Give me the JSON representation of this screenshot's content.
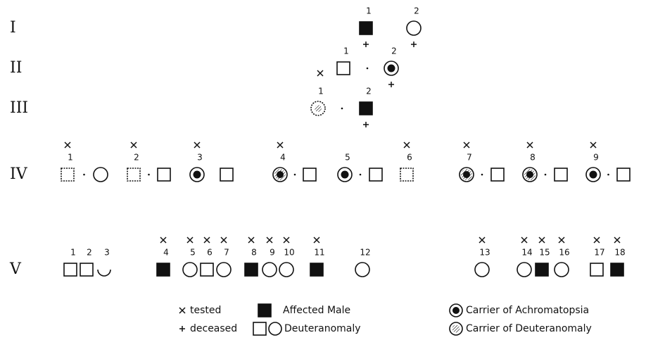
{
  "generations": [
    {
      "label": "I",
      "members": [
        {
          "n": "1",
          "kind": "affected-male",
          "deceased": true
        },
        {
          "n": "2",
          "kind": "female",
          "deceased": true
        }
      ]
    },
    {
      "label": "II",
      "members": [
        {
          "n": "1",
          "kind": "male"
        },
        {
          "n": "2",
          "kind": "carrier-achromatopsia",
          "deceased": true
        }
      ]
    },
    {
      "label": "III",
      "members": [
        {
          "n": "1",
          "kind": "carrier-deuteranomaly",
          "tested": true
        },
        {
          "n": "2",
          "kind": "affected-male",
          "deceased": true
        }
      ]
    },
    {
      "label": "IV",
      "members": [
        {
          "n": "1",
          "kind": "deuteranomaly-male",
          "tested": true
        },
        {
          "kind": "female"
        },
        {
          "n": "2",
          "kind": "deuteranomaly-male",
          "tested": true
        },
        {
          "kind": "male"
        },
        {
          "n": "3",
          "kind": "carrier-achromatopsia",
          "tested": true
        },
        {
          "kind": "male"
        },
        {
          "n": "4",
          "kind": "carrier-both",
          "tested": true
        },
        {
          "kind": "male"
        },
        {
          "n": "5",
          "kind": "carrier-achromatopsia"
        },
        {
          "kind": "male"
        },
        {
          "n": "6",
          "kind": "deuteranomaly-male",
          "tested": true
        },
        {
          "n": "7",
          "kind": "carrier-both",
          "tested": true
        },
        {
          "kind": "male"
        },
        {
          "n": "8",
          "kind": "carrier-both",
          "tested": true
        },
        {
          "kind": "male"
        },
        {
          "n": "9",
          "kind": "carrier-achromatopsia",
          "tested": true
        },
        {
          "kind": "male"
        }
      ]
    },
    {
      "label": "V",
      "members": [
        {
          "n": "1",
          "kind": "male"
        },
        {
          "n": "2",
          "kind": "male"
        },
        {
          "n": "3",
          "kind": "half-female"
        },
        {
          "n": "4",
          "kind": "affected-male",
          "tested": true
        },
        {
          "n": "5",
          "kind": "female",
          "tested": true
        },
        {
          "n": "6",
          "kind": "male",
          "tested": true
        },
        {
          "n": "7",
          "kind": "female",
          "tested": true
        },
        {
          "n": "8",
          "kind": "affected-male",
          "tested": true
        },
        {
          "n": "9",
          "kind": "female",
          "tested": true
        },
        {
          "n": "10",
          "kind": "female",
          "tested": true
        },
        {
          "n": "11",
          "kind": "affected-male",
          "tested": true
        },
        {
          "n": "12",
          "kind": "female"
        },
        {
          "n": "13",
          "kind": "female",
          "tested": true
        },
        {
          "n": "14",
          "kind": "female",
          "tested": true
        },
        {
          "n": "15",
          "kind": "affected-male",
          "tested": true
        },
        {
          "n": "16",
          "kind": "female",
          "tested": true
        },
        {
          "n": "17",
          "kind": "male",
          "tested": true
        },
        {
          "n": "18",
          "kind": "affected-male",
          "tested": true
        }
      ]
    }
  ],
  "legend": {
    "tested": "tested",
    "deceased": "deceased",
    "affected": "Affected Male",
    "deuteranomaly": "Deuteranomaly",
    "carrier_achromatopsia": "Carrier of Achromatopsia",
    "carrier_deuteranomaly": "Carrier of Deuteranomaly"
  }
}
